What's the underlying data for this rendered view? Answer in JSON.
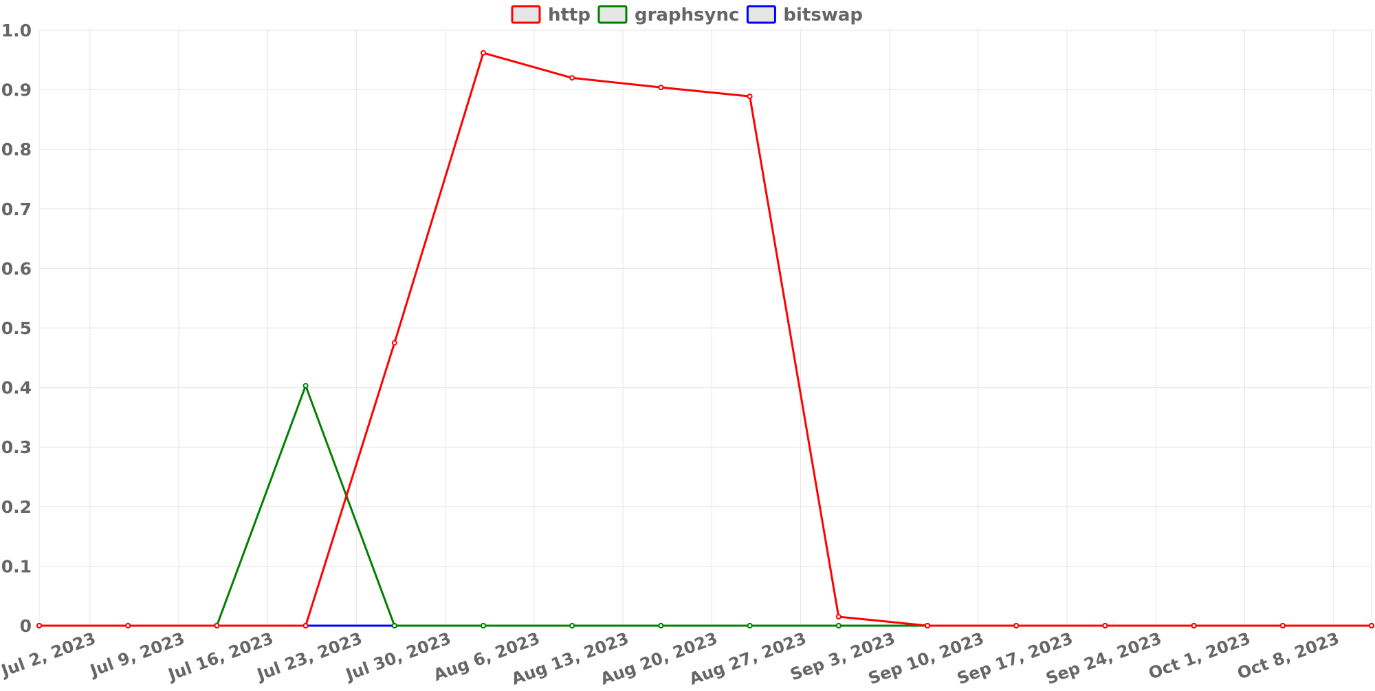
{
  "chart_data": {
    "type": "line",
    "x": [
      "2023-06-28",
      "2023-07-05",
      "2023-07-12",
      "2023-07-19",
      "2023-07-26",
      "2023-08-02",
      "2023-08-09",
      "2023-08-16",
      "2023-08-23",
      "2023-08-30",
      "2023-09-06",
      "2023-09-13",
      "2023-09-20",
      "2023-09-27",
      "2023-10-04",
      "2023-10-11"
    ],
    "x_ticks": [
      "Jul 2, 2023",
      "Jul 9, 2023",
      "Jul 16, 2023",
      "Jul 23, 2023",
      "Jul 30, 2023",
      "Aug 6, 2023",
      "Aug 13, 2023",
      "Aug 20, 2023",
      "Aug 27, 2023",
      "Sep 3, 2023",
      "Sep 10, 2023",
      "Sep 17, 2023",
      "Sep 24, 2023",
      "Oct 1, 2023",
      "Oct 8, 2023"
    ],
    "x_tick_dates": [
      "2023-07-02",
      "2023-07-09",
      "2023-07-16",
      "2023-07-23",
      "2023-07-30",
      "2023-08-06",
      "2023-08-13",
      "2023-08-20",
      "2023-08-27",
      "2023-09-03",
      "2023-09-10",
      "2023-09-17",
      "2023-09-24",
      "2023-10-01",
      "2023-10-08"
    ],
    "xlim": [
      "2023-06-28",
      "2023-10-11"
    ],
    "y_ticks": [
      "0",
      "0.1",
      "0.2",
      "0.3",
      "0.4",
      "0.5",
      "0.6",
      "0.7",
      "0.8",
      "0.9",
      "1.0"
    ],
    "ylim": [
      0,
      1
    ],
    "title": "",
    "xlabel": "",
    "ylabel": "",
    "grid": true,
    "legend_position": "top-center",
    "series": [
      {
        "name": "bitswap",
        "color": "#0000ff",
        "values": [
          0,
          0,
          0,
          0,
          0,
          0,
          0,
          0,
          0,
          0,
          0,
          0,
          0,
          0,
          0,
          0
        ]
      },
      {
        "name": "graphsync",
        "color": "#008000",
        "values": [
          0,
          0,
          0,
          0.403,
          0,
          0,
          0,
          0,
          0,
          0,
          0,
          0,
          0,
          0,
          0,
          0
        ]
      },
      {
        "name": "http",
        "color": "#ff0000",
        "values": [
          0,
          0,
          0,
          0,
          0.475,
          0.962,
          0.92,
          0.904,
          0.889,
          0.015,
          0,
          0,
          0,
          0,
          0,
          0
        ]
      }
    ],
    "legend": [
      "http",
      "graphsync",
      "bitswap"
    ]
  }
}
